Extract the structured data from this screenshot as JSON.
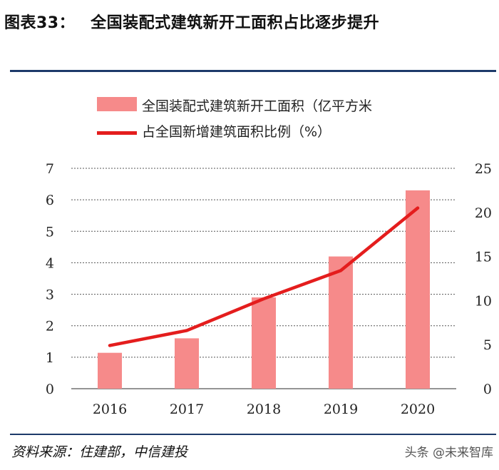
{
  "header": {
    "figure_number": "图表33：",
    "title": "全国装配式建筑新开工面积占比逐步提升"
  },
  "footer": {
    "source": "资料来源：住建部，中信建投",
    "watermark": "头条 @未来智库"
  },
  "colors": {
    "bar": "#f68a8a",
    "line": "#e41d1d",
    "rule": "#1d3a6a",
    "grid": "#555555"
  },
  "chart_data": {
    "type": "bar+line",
    "categories": [
      "2016",
      "2017",
      "2018",
      "2019",
      "2020"
    ],
    "series": [
      {
        "name": "全国装配式建筑新开工面积（亿平方米",
        "type": "bar",
        "axis": "left",
        "values": [
          1.14,
          1.6,
          2.9,
          4.2,
          6.3
        ]
      },
      {
        "name": "占全国新增建筑面积比例（%）",
        "type": "line",
        "axis": "right",
        "values": [
          4.9,
          6.6,
          10.2,
          13.4,
          20.5
        ]
      }
    ],
    "y_left": {
      "min": 0,
      "max": 7,
      "ticks": [
        "0",
        "1",
        "2",
        "3",
        "4",
        "5",
        "6",
        "7"
      ]
    },
    "y_right": {
      "min": 0,
      "max": 25,
      "ticks": [
        "0",
        "5",
        "10",
        "15",
        "20",
        "25"
      ]
    },
    "grid": "horizontal-dotted",
    "legend_position": "top-left"
  }
}
